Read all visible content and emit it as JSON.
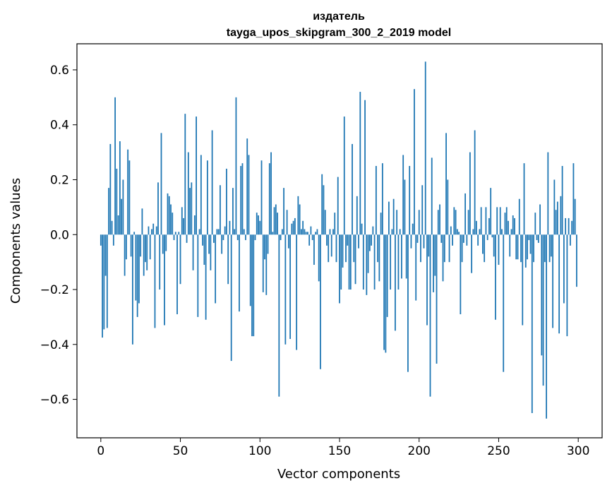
{
  "chart_data": {
    "type": "bar",
    "title_lines": [
      "издатель",
      "tayga_upos_skipgram_300_2_2019 model"
    ],
    "xlabel": "Vector components",
    "ylabel": "Components values",
    "xlim": [
      -15,
      315
    ],
    "ylim": [
      -0.74,
      0.695
    ],
    "xticks": [
      0,
      50,
      100,
      150,
      200,
      250,
      300
    ],
    "xtick_labels": [
      "0",
      "50",
      "100",
      "150",
      "200",
      "250",
      "300"
    ],
    "yticks": [
      -0.6,
      -0.4,
      -0.2,
      0.0,
      0.2,
      0.4,
      0.6
    ],
    "ytick_labels": [
      "−0.6",
      "−0.4",
      "−0.2",
      "0.0",
      "0.2",
      "0.4",
      "0.6"
    ],
    "grid": false,
    "bar_color": "#1f77b4",
    "x": [
      0,
      1,
      2,
      3,
      4,
      5,
      6,
      7,
      8,
      9,
      10,
      11,
      12,
      13,
      14,
      15,
      16,
      17,
      18,
      19,
      20,
      21,
      22,
      23,
      24,
      25,
      26,
      27,
      28,
      29,
      30,
      31,
      32,
      33,
      34,
      35,
      36,
      37,
      38,
      39,
      40,
      41,
      42,
      43,
      44,
      45,
      46,
      47,
      48,
      49,
      50,
      51,
      52,
      53,
      54,
      55,
      56,
      57,
      58,
      59,
      60,
      61,
      62,
      63,
      64,
      65,
      66,
      67,
      68,
      69,
      70,
      71,
      72,
      73,
      74,
      75,
      76,
      77,
      78,
      79,
      80,
      81,
      82,
      83,
      84,
      85,
      86,
      87,
      88,
      89,
      90,
      91,
      92,
      93,
      94,
      95,
      96,
      97,
      98,
      99,
      100,
      101,
      102,
      103,
      104,
      105,
      106,
      107,
      108,
      109,
      110,
      111,
      112,
      113,
      114,
      115,
      116,
      117,
      118,
      119,
      120,
      121,
      122,
      123,
      124,
      125,
      126,
      127,
      128,
      129,
      130,
      131,
      132,
      133,
      134,
      135,
      136,
      137,
      138,
      139,
      140,
      141,
      142,
      143,
      144,
      145,
      146,
      147,
      148,
      149,
      150,
      151,
      152,
      153,
      154,
      155,
      156,
      157,
      158,
      159,
      160,
      161,
      162,
      163,
      164,
      165,
      166,
      167,
      168,
      169,
      170,
      171,
      172,
      173,
      174,
      175,
      176,
      177,
      178,
      179,
      180,
      181,
      182,
      183,
      184,
      185,
      186,
      187,
      188,
      189,
      190,
      191,
      192,
      193,
      194,
      195,
      196,
      197,
      198,
      199,
      200,
      201,
      202,
      203,
      204,
      205,
      206,
      207,
      208,
      209,
      210,
      211,
      212,
      213,
      214,
      215,
      216,
      217,
      218,
      219,
      220,
      221,
      222,
      223,
      224,
      225,
      226,
      227,
      228,
      229,
      230,
      231,
      232,
      233,
      234,
      235,
      236,
      237,
      238,
      239,
      240,
      241,
      242,
      243,
      244,
      245,
      246,
      247,
      248,
      249,
      250,
      251,
      252,
      253,
      254,
      255,
      256,
      257,
      258,
      259,
      260,
      261,
      262,
      263,
      264,
      265,
      266,
      267,
      268,
      269,
      270,
      271,
      272,
      273,
      274,
      275,
      276,
      277,
      278,
      279,
      280,
      281,
      282,
      283,
      284,
      285,
      286,
      287,
      288,
      289,
      290,
      291,
      292,
      293,
      294,
      295,
      296,
      297,
      298,
      299
    ],
    "values": [
      -0.04,
      -0.375,
      -0.345,
      -0.15,
      -0.34,
      0.17,
      0.33,
      0.05,
      -0.04,
      0.5,
      0.24,
      0.07,
      0.34,
      0.13,
      0.2,
      -0.15,
      -0.09,
      0.31,
      0.27,
      -0.08,
      -0.4,
      0.01,
      -0.24,
      -0.3,
      -0.25,
      -0.08,
      0.095,
      -0.15,
      -0.1,
      -0.13,
      0.03,
      -0.09,
      0.02,
      0.04,
      -0.34,
      0.03,
      0.19,
      -0.2,
      0.37,
      -0.07,
      -0.33,
      -0.06,
      0.15,
      0.14,
      0.11,
      0.08,
      -0.02,
      0.01,
      -0.29,
      0.01,
      -0.18,
      0.1,
      0.06,
      0.44,
      -0.03,
      0.3,
      0.17,
      0.19,
      -0.13,
      0.07,
      0.43,
      -0.3,
      0.02,
      0.29,
      -0.04,
      -0.11,
      -0.31,
      0.27,
      -0.07,
      -0.13,
      0.38,
      -0.03,
      -0.25,
      0.02,
      0.02,
      0.18,
      -0.07,
      -0.02,
      0.03,
      0.24,
      -0.18,
      0.05,
      -0.46,
      0.17,
      0.02,
      0.5,
      -0.02,
      -0.28,
      0.25,
      0.26,
      0.02,
      -0.02,
      0.35,
      0.29,
      -0.26,
      -0.37,
      -0.37,
      -0.02,
      0.08,
      0.07,
      0.05,
      0.27,
      -0.21,
      -0.09,
      -0.22,
      -0.07,
      0.26,
      0.3,
      0.01,
      0.1,
      0.11,
      0.08,
      -0.59,
      -0.02,
      0.02,
      0.17,
      -0.4,
      0.09,
      -0.05,
      -0.38,
      0.04,
      0.05,
      0.06,
      -0.42,
      0.14,
      0.11,
      0.02,
      0.05,
      0.02,
      0.01,
      0.01,
      -0.04,
      0.03,
      -0.02,
      -0.11,
      0.01,
      0.02,
      -0.17,
      -0.49,
      0.22,
      0.18,
      0.09,
      -0.04,
      -0.1,
      0.02,
      -0.08,
      0.02,
      0.08,
      -0.1,
      0.21,
      -0.25,
      -0.2,
      -0.12,
      0.43,
      -0.1,
      -0.04,
      -0.2,
      -0.2,
      0.33,
      -0.1,
      -0.18,
      0.14,
      -0.05,
      0.52,
      0.04,
      -0.2,
      0.49,
      -0.22,
      -0.14,
      -0.06,
      -0.04,
      0.03,
      -0.2,
      0.25,
      -0.1,
      -0.17,
      0.08,
      0.26,
      -0.42,
      -0.43,
      -0.3,
      0.12,
      -0.2,
      0.02,
      0.13,
      -0.35,
      0.09,
      -0.2,
      0.02,
      -0.16,
      0.29,
      0.2,
      -0.16,
      -0.5,
      0.25,
      -0.05,
      0.04,
      0.53,
      -0.24,
      -0.03,
      0.09,
      -0.1,
      0.18,
      -0.05,
      0.63,
      -0.33,
      -0.08,
      -0.59,
      0.28,
      -0.21,
      -0.15,
      -0.47,
      0.09,
      0.11,
      -0.03,
      -0.17,
      -0.1,
      0.37,
      0.2,
      -0.1,
      0.03,
      -0.04,
      0.1,
      0.09,
      0.02,
      0.01,
      -0.29,
      -0.1,
      -0.03,
      0.15,
      -0.04,
      0.09,
      0.3,
      -0.14,
      0.02,
      0.38,
      0.05,
      -0.04,
      0.02,
      0.1,
      -0.07,
      -0.1,
      0.1,
      -0.02,
      0.06,
      0.17,
      -0.01,
      -0.08,
      -0.31,
      0.1,
      -0.11,
      0.1,
      0.02,
      -0.5,
      0.08,
      0.1,
      0.05,
      -0.08,
      0.02,
      0.07,
      0.06,
      -0.09,
      -0.09,
      0.13,
      -0.1,
      -0.33,
      0.26,
      -0.12,
      -0.09,
      -0.02,
      -0.07,
      -0.65,
      -0.1,
      0.08,
      -0.02,
      -0.03,
      0.11,
      -0.44,
      -0.55,
      -0.1,
      -0.67,
      0.3,
      -0.1,
      -0.08,
      -0.34,
      0.2,
      0.09,
      0.12,
      -0.36,
      0.14,
      0.25,
      -0.25,
      0.06,
      -0.37,
      0.06,
      -0.04,
      0.05,
      0.26,
      0.13,
      -0.19
    ]
  }
}
